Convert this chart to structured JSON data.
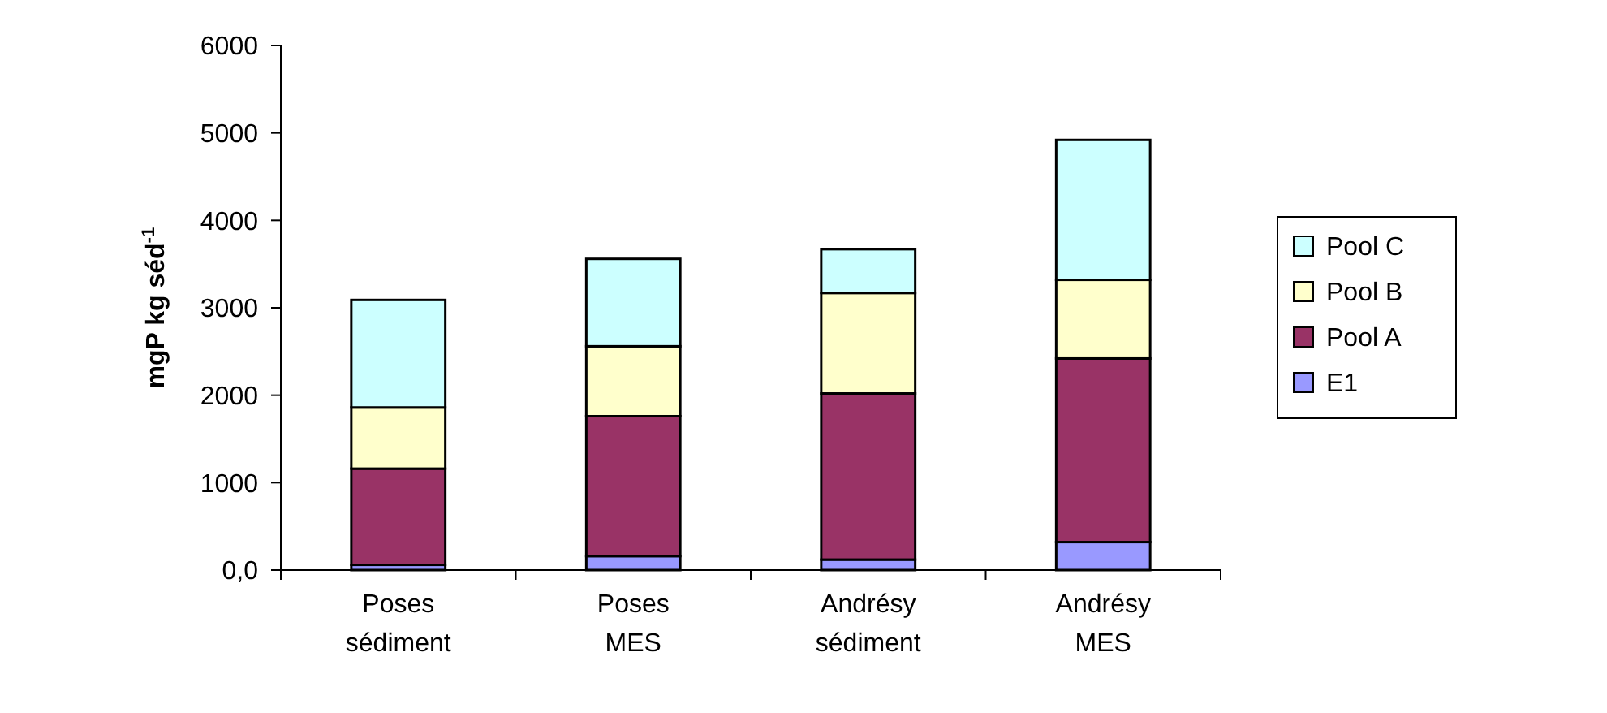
{
  "chart_data": {
    "type": "bar",
    "stacked": true,
    "ylabel": "mgP kg séd$^{-1}$",
    "categories": [
      "Poses sédiment",
      "Poses MES",
      "Andrésy sédiment",
      "Andrésy MES"
    ],
    "series": [
      {
        "name": "E1",
        "color": "#9999ff",
        "values": [
          60,
          160,
          120,
          320
        ]
      },
      {
        "name": "Pool A",
        "color": "#993366",
        "values": [
          1100,
          1600,
          1900,
          2100
        ]
      },
      {
        "name": "Pool B",
        "color": "#ffffcc",
        "values": [
          700,
          800,
          1150,
          900
        ]
      },
      {
        "name": "Pool C",
        "color": "#ccffff",
        "values": [
          1230,
          1000,
          500,
          1600
        ]
      }
    ],
    "ylim": [
      0,
      6000
    ],
    "yticks": [
      {
        "value": 0,
        "label": "0,0"
      },
      1000,
      2000,
      3000,
      4000,
      5000,
      6000
    ],
    "legend": "right",
    "grid": false
  }
}
